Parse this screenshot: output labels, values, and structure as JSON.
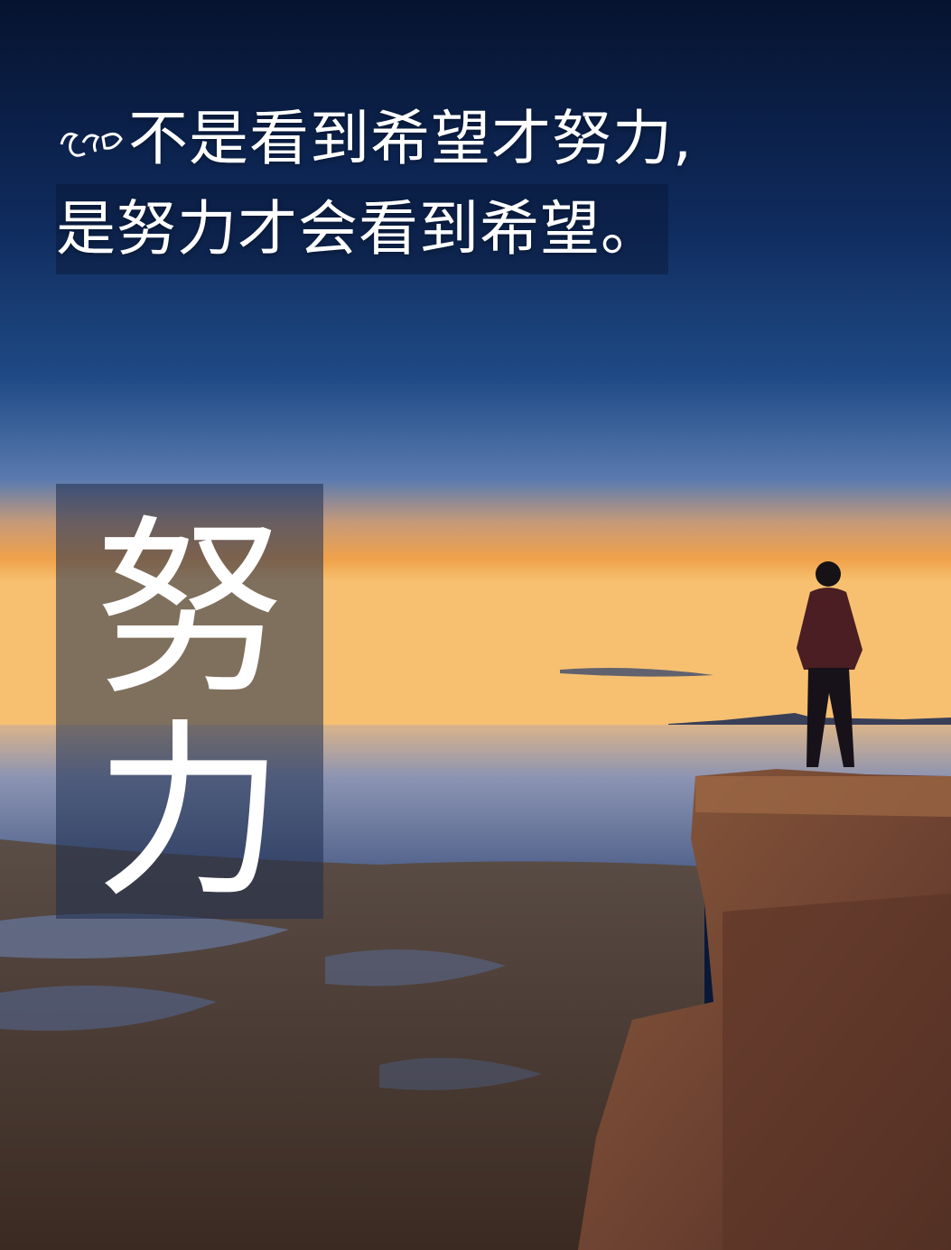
{
  "quote": {
    "line1": "不是看到希望才努力,",
    "line2": "是努力才会看到希望。"
  },
  "vertical_title": {
    "char1": "努",
    "char2": "力"
  },
  "colors": {
    "sky_top": "#06163a",
    "sky_mid": "#1f4680",
    "horizon_glow": "#f0a04a",
    "sea": "#6a7fa8",
    "rock": "#6b4a36",
    "text": "#ffffff"
  },
  "icons": [
    "leaf-ornament-icon"
  ]
}
